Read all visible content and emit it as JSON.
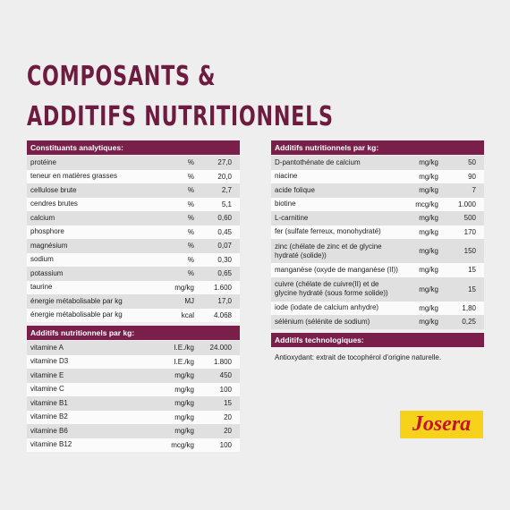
{
  "title": [
    "COMPOSANTS &",
    "ADDITIFS NUTRITIONNELS"
  ],
  "left": [
    {
      "header": "Constituants analytiques:",
      "rows": [
        [
          "protéine",
          "%",
          "27,0"
        ],
        [
          "teneur en matières grasses",
          "%",
          "20,0"
        ],
        [
          "cellulose brute",
          "%",
          "2,7"
        ],
        [
          "cendres brutes",
          "%",
          "5,1"
        ],
        [
          "calcium",
          "%",
          "0,60"
        ],
        [
          "phosphore",
          "%",
          "0,45"
        ],
        [
          "magnésium",
          "%",
          "0,07"
        ],
        [
          "sodium",
          "%",
          "0,30"
        ],
        [
          "potassium",
          "%",
          "0,65"
        ],
        [
          "taurine",
          "mg/kg",
          "1.600"
        ],
        [
          "énergie métabolisable par kg",
          "MJ",
          "17,0"
        ],
        [
          "énergie métabolisable par kg",
          "kcal",
          "4.068"
        ]
      ]
    },
    {
      "header": "Additifs nutritionnels par kg:",
      "rows": [
        [
          "vitamine A",
          "I.E./kg",
          "24.000"
        ],
        [
          "vitamine D3",
          "I.E./kg",
          "1.800"
        ],
        [
          "vitamine E",
          "mg/kg",
          "450"
        ],
        [
          "vitamine C",
          "mg/kg",
          "100"
        ],
        [
          "vitamine B1",
          "mg/kg",
          "15"
        ],
        [
          "vitamine B2",
          "mg/kg",
          "20"
        ],
        [
          "vitamine B6",
          "mg/kg",
          "20"
        ],
        [
          "vitamine B12",
          "mcg/kg",
          "100"
        ]
      ]
    }
  ],
  "right": [
    {
      "header": "Additifs nutritionnels par kg:",
      "rows": [
        [
          "D-pantothénate de calcium",
          "mg/kg",
          "50"
        ],
        [
          "niacine",
          "mg/kg",
          "90"
        ],
        [
          "acide folique",
          "mg/kg",
          "7"
        ],
        [
          "biotine",
          "mcg/kg",
          "1.000"
        ],
        [
          "L-carnitine",
          "mg/kg",
          "500"
        ],
        [
          "fer (sulfate ferreux, monohydraté)",
          "mg/kg",
          "170"
        ],
        [
          "zinc (chélate de zinc et de glycine hydraté (solide))",
          "mg/kg",
          "150"
        ],
        [
          "manganèse (oxyde de manganèse (II))",
          "mg/kg",
          "15"
        ],
        [
          "cuivre (chélate de cuivre(II) et de glycine hydraté (sous forme solide))",
          "mg/kg",
          "15"
        ],
        [
          "iode (iodate de calcium anhydre)",
          "mg/kg",
          "1,80"
        ],
        [
          "sélénium (sélénite de sodium)",
          "mg/kg",
          "0,25"
        ]
      ]
    },
    {
      "header": "Additifs technologiques:",
      "text": "Antioxydant: extrait de tocophérol d'origine naturelle."
    }
  ],
  "logo": "Josera"
}
